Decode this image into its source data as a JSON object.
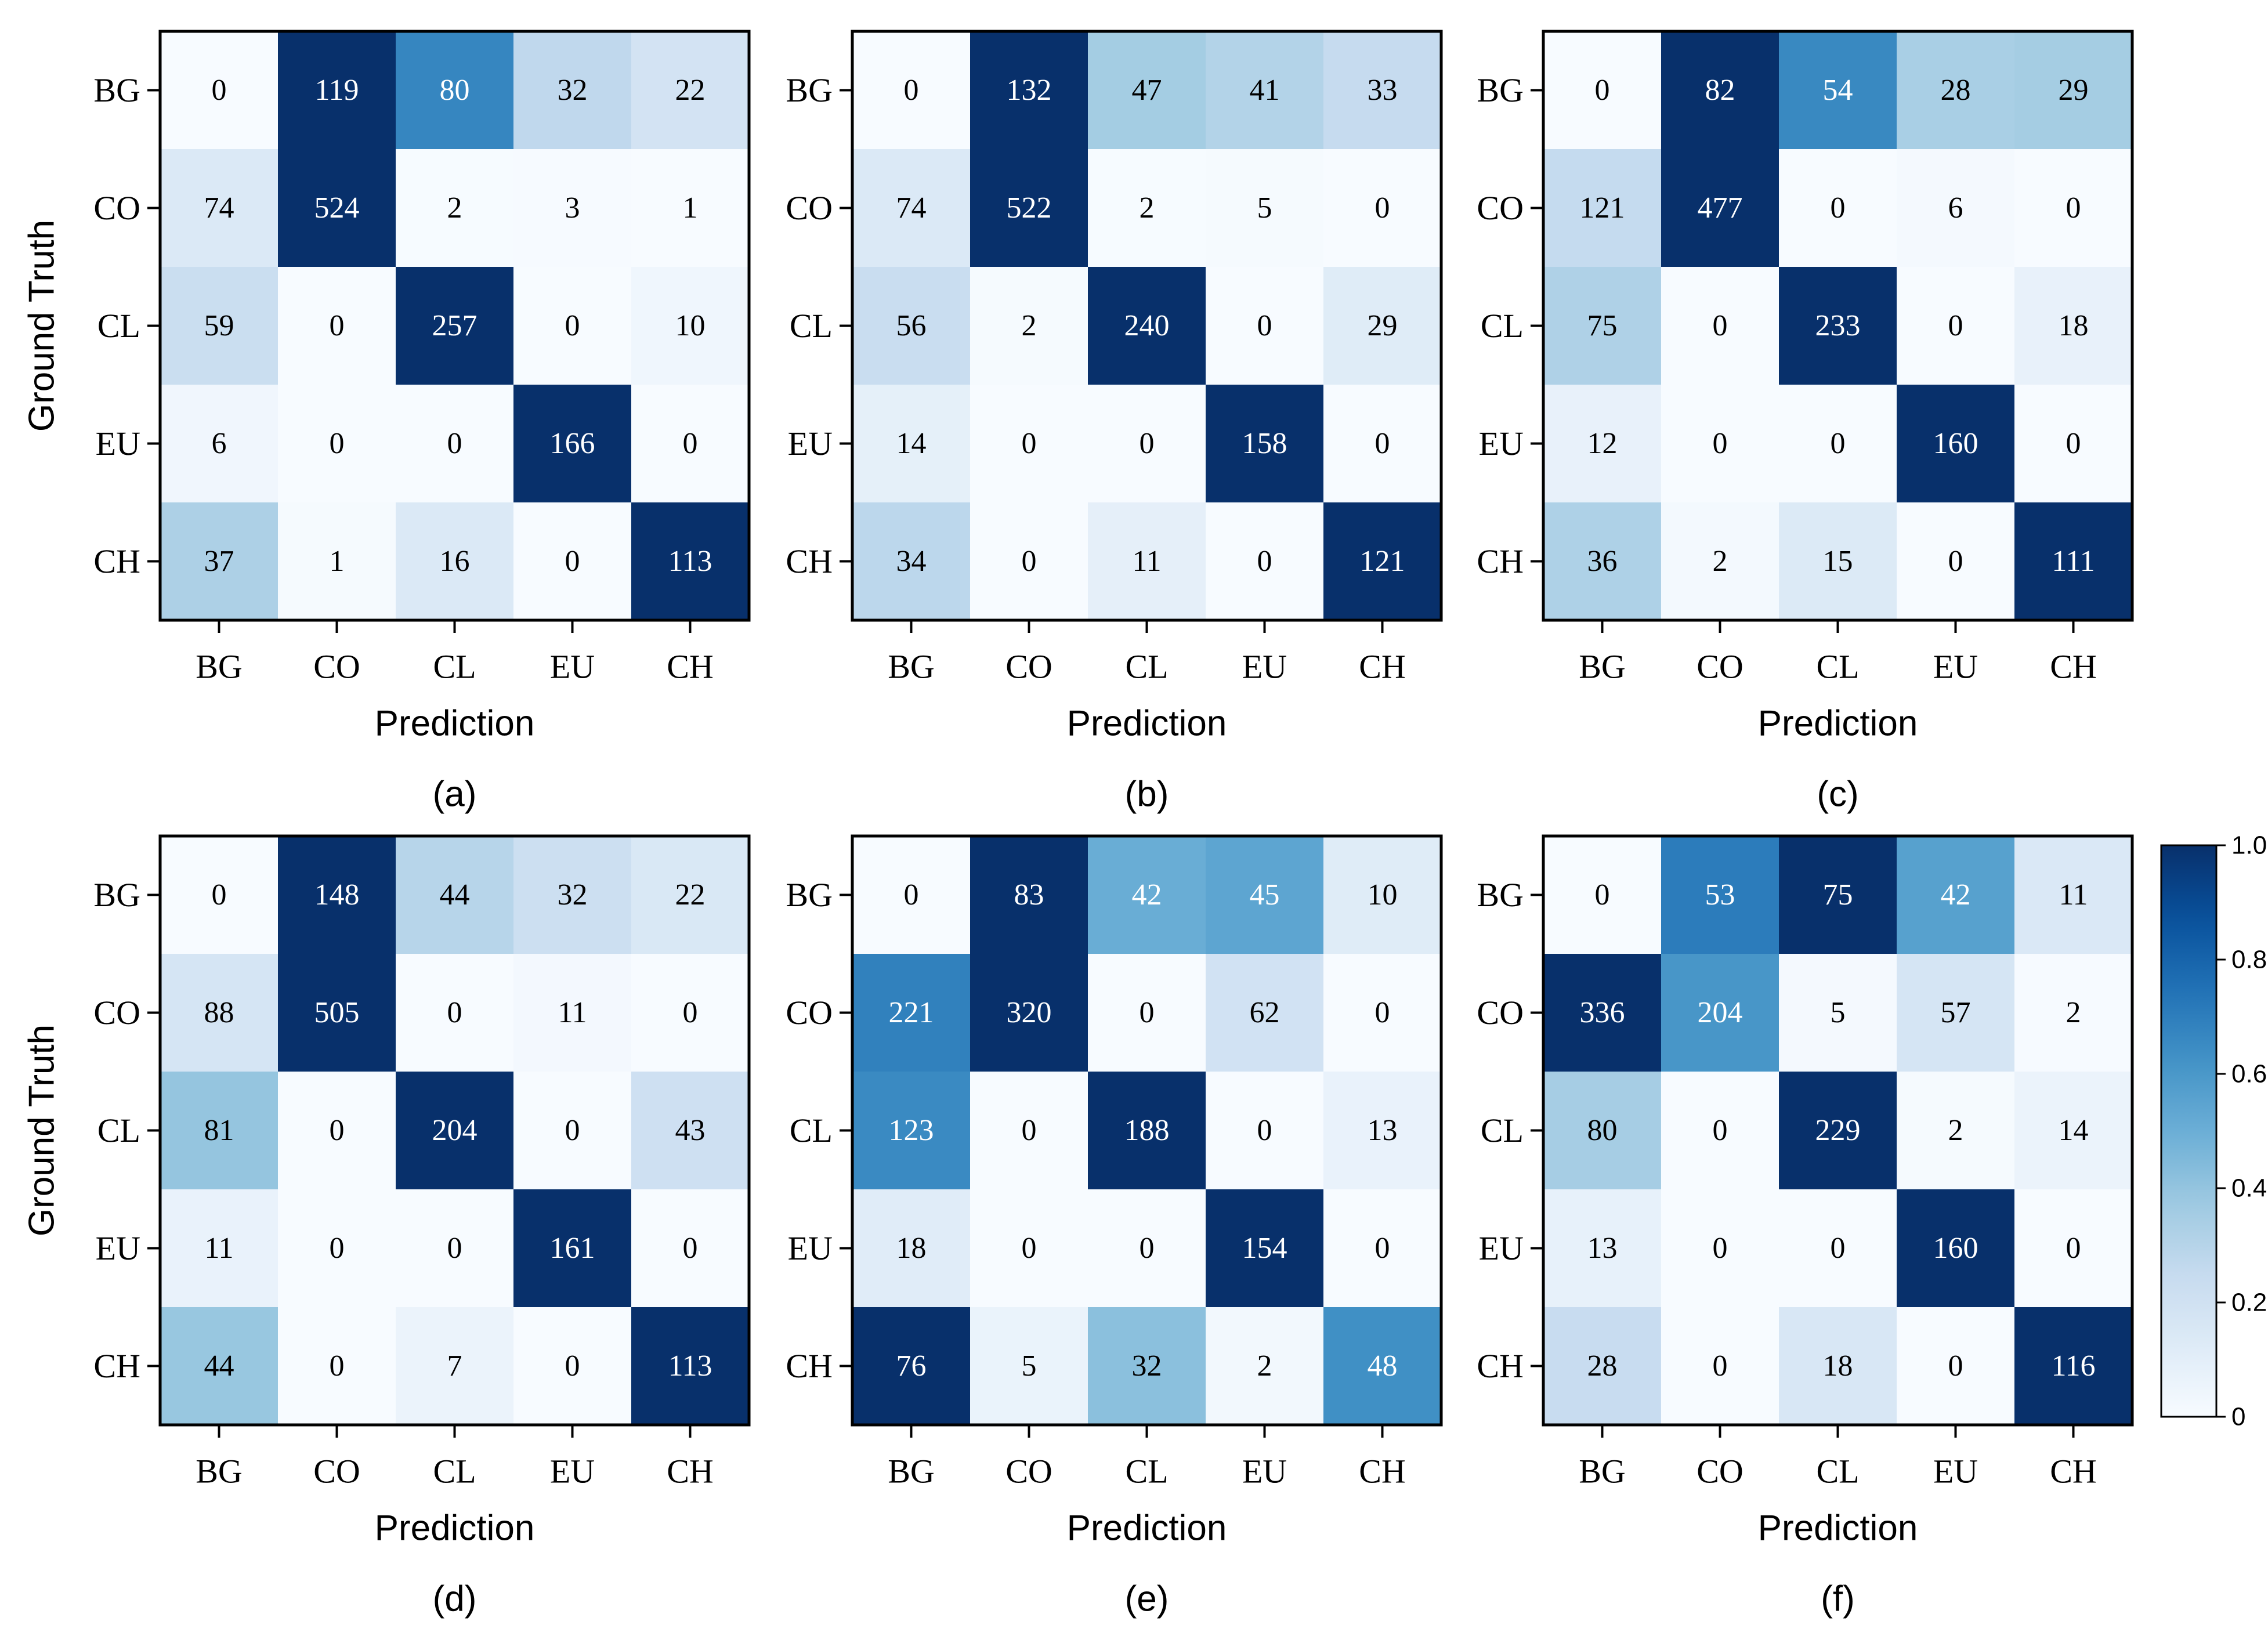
{
  "chart_data": {
    "type": "heatmap",
    "row_labels": [
      "BG",
      "CO",
      "CL",
      "EU",
      "CH"
    ],
    "col_labels": [
      "BG",
      "CO",
      "CL",
      "EU",
      "CH"
    ],
    "xlabel": "Prediction",
    "ylabel": "Ground Truth",
    "colormap": "Blues",
    "colorbar": {
      "range": [
        0,
        1.0
      ],
      "ticks": [
        {
          "value": 1.0,
          "label": "1.0"
        },
        {
          "value": 0.8,
          "label": "0.8"
        },
        {
          "value": 0.6,
          "label": "0.6"
        },
        {
          "value": 0.4,
          "label": "0.4"
        },
        {
          "value": 0.2,
          "label": "0.2"
        },
        {
          "value": 0.0,
          "label": "0"
        }
      ]
    },
    "panels": [
      {
        "label": "(a)",
        "matrix": [
          [
            0,
            119,
            80,
            32,
            22
          ],
          [
            74,
            524,
            2,
            3,
            1
          ],
          [
            59,
            0,
            257,
            0,
            10
          ],
          [
            6,
            0,
            0,
            166,
            0
          ],
          [
            37,
            1,
            16,
            0,
            113
          ]
        ]
      },
      {
        "label": "(b)",
        "matrix": [
          [
            0,
            132,
            47,
            41,
            33
          ],
          [
            74,
            522,
            2,
            5,
            0
          ],
          [
            56,
            2,
            240,
            0,
            29
          ],
          [
            14,
            0,
            0,
            158,
            0
          ],
          [
            34,
            0,
            11,
            0,
            121
          ]
        ]
      },
      {
        "label": "(c)",
        "matrix": [
          [
            0,
            82,
            54,
            28,
            29
          ],
          [
            121,
            477,
            0,
            6,
            0
          ],
          [
            75,
            0,
            233,
            0,
            18
          ],
          [
            12,
            0,
            0,
            160,
            0
          ],
          [
            36,
            2,
            15,
            0,
            111
          ]
        ]
      },
      {
        "label": "(d)",
        "matrix": [
          [
            0,
            148,
            44,
            32,
            22
          ],
          [
            88,
            505,
            0,
            11,
            0
          ],
          [
            81,
            0,
            204,
            0,
            43
          ],
          [
            11,
            0,
            0,
            161,
            0
          ],
          [
            44,
            0,
            7,
            0,
            113
          ]
        ]
      },
      {
        "label": "(e)",
        "matrix": [
          [
            0,
            83,
            42,
            45,
            10
          ],
          [
            221,
            320,
            0,
            62,
            0
          ],
          [
            123,
            0,
            188,
            0,
            13
          ],
          [
            18,
            0,
            0,
            154,
            0
          ],
          [
            76,
            5,
            32,
            2,
            48
          ]
        ]
      },
      {
        "label": "(f)",
        "matrix": [
          [
            0,
            53,
            75,
            42,
            11
          ],
          [
            336,
            204,
            5,
            57,
            2
          ],
          [
            80,
            0,
            229,
            2,
            14
          ],
          [
            13,
            0,
            0,
            160,
            0
          ],
          [
            28,
            0,
            18,
            0,
            116
          ]
        ]
      }
    ]
  }
}
